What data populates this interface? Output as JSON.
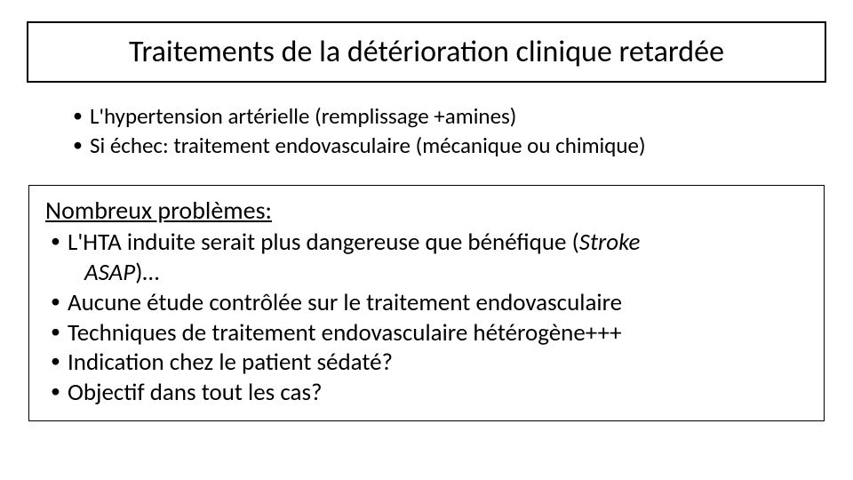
{
  "title": "Traitements de la détérioration clinique retardée",
  "topList": {
    "items": [
      "L'hypertension artérielle (remplissage +amines)",
      "Si échec: traitement endovasculaire (mécanique ou chimique)"
    ]
  },
  "problems": {
    "heading": "Nombreux problèmes:",
    "items": [
      {
        "pre": "L'HTA induite serait plus dangereuse que bénéfique (",
        "italic": "Stroke",
        "post": ""
      },
      {
        "continuationItalic": "ASAP",
        "continuationPost": ")…"
      },
      {
        "text": "Aucune étude contrôlée sur le traitement endovasculaire"
      },
      {
        "text": "Techniques de traitement endovasculaire hétérogène+++"
      },
      {
        "text": "Indication chez le patient sédaté?"
      },
      {
        "text": "Objectif dans tout les cas?"
      }
    ]
  },
  "colors": {
    "background": "#ffffff",
    "text": "#000000",
    "border": "#000000"
  },
  "fonts": {
    "family": "Calibri",
    "titleSize": 34,
    "topListSize": 25,
    "bottomListSize": 27
  }
}
